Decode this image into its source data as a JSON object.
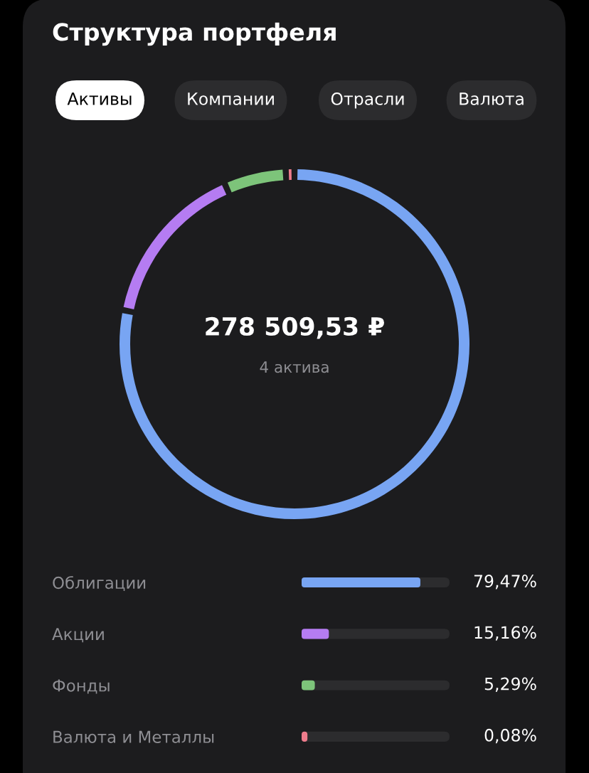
{
  "chart_data": [
    {
      "type": "donut",
      "title": "Структура портфеля",
      "categories": [
        null,
        null,
        null,
        null
      ],
      "values": [
        79.47,
        15.16,
        5.29,
        0.08
      ],
      "colors": [
        "#78a5f3",
        "#b57cf2",
        "#7dc47a",
        "#ee7c8c"
      ],
      "annotations": [
        "Активы",
        "Компании",
        "Отрасли",
        "Валюта",
        "278 509,53 ₽",
        "4 актива"
      ]
    },
    {
      "type": "bar",
      "orientation": "horizontal",
      "categories": [
        "Облигации",
        "Акции",
        "Фонды",
        "Валюта и Металлы"
      ],
      "values": [
        79.47,
        15.16,
        5.29,
        0.08
      ],
      "colors": [
        "#78a5f3",
        "#b57cf2",
        "#7dc47a",
        "#ee7c8c"
      ],
      "value_labels": [
        "79,47%",
        "15,16%",
        "5,29%",
        "0,08%"
      ],
      "tick_labels": "y"
    }
  ]
}
